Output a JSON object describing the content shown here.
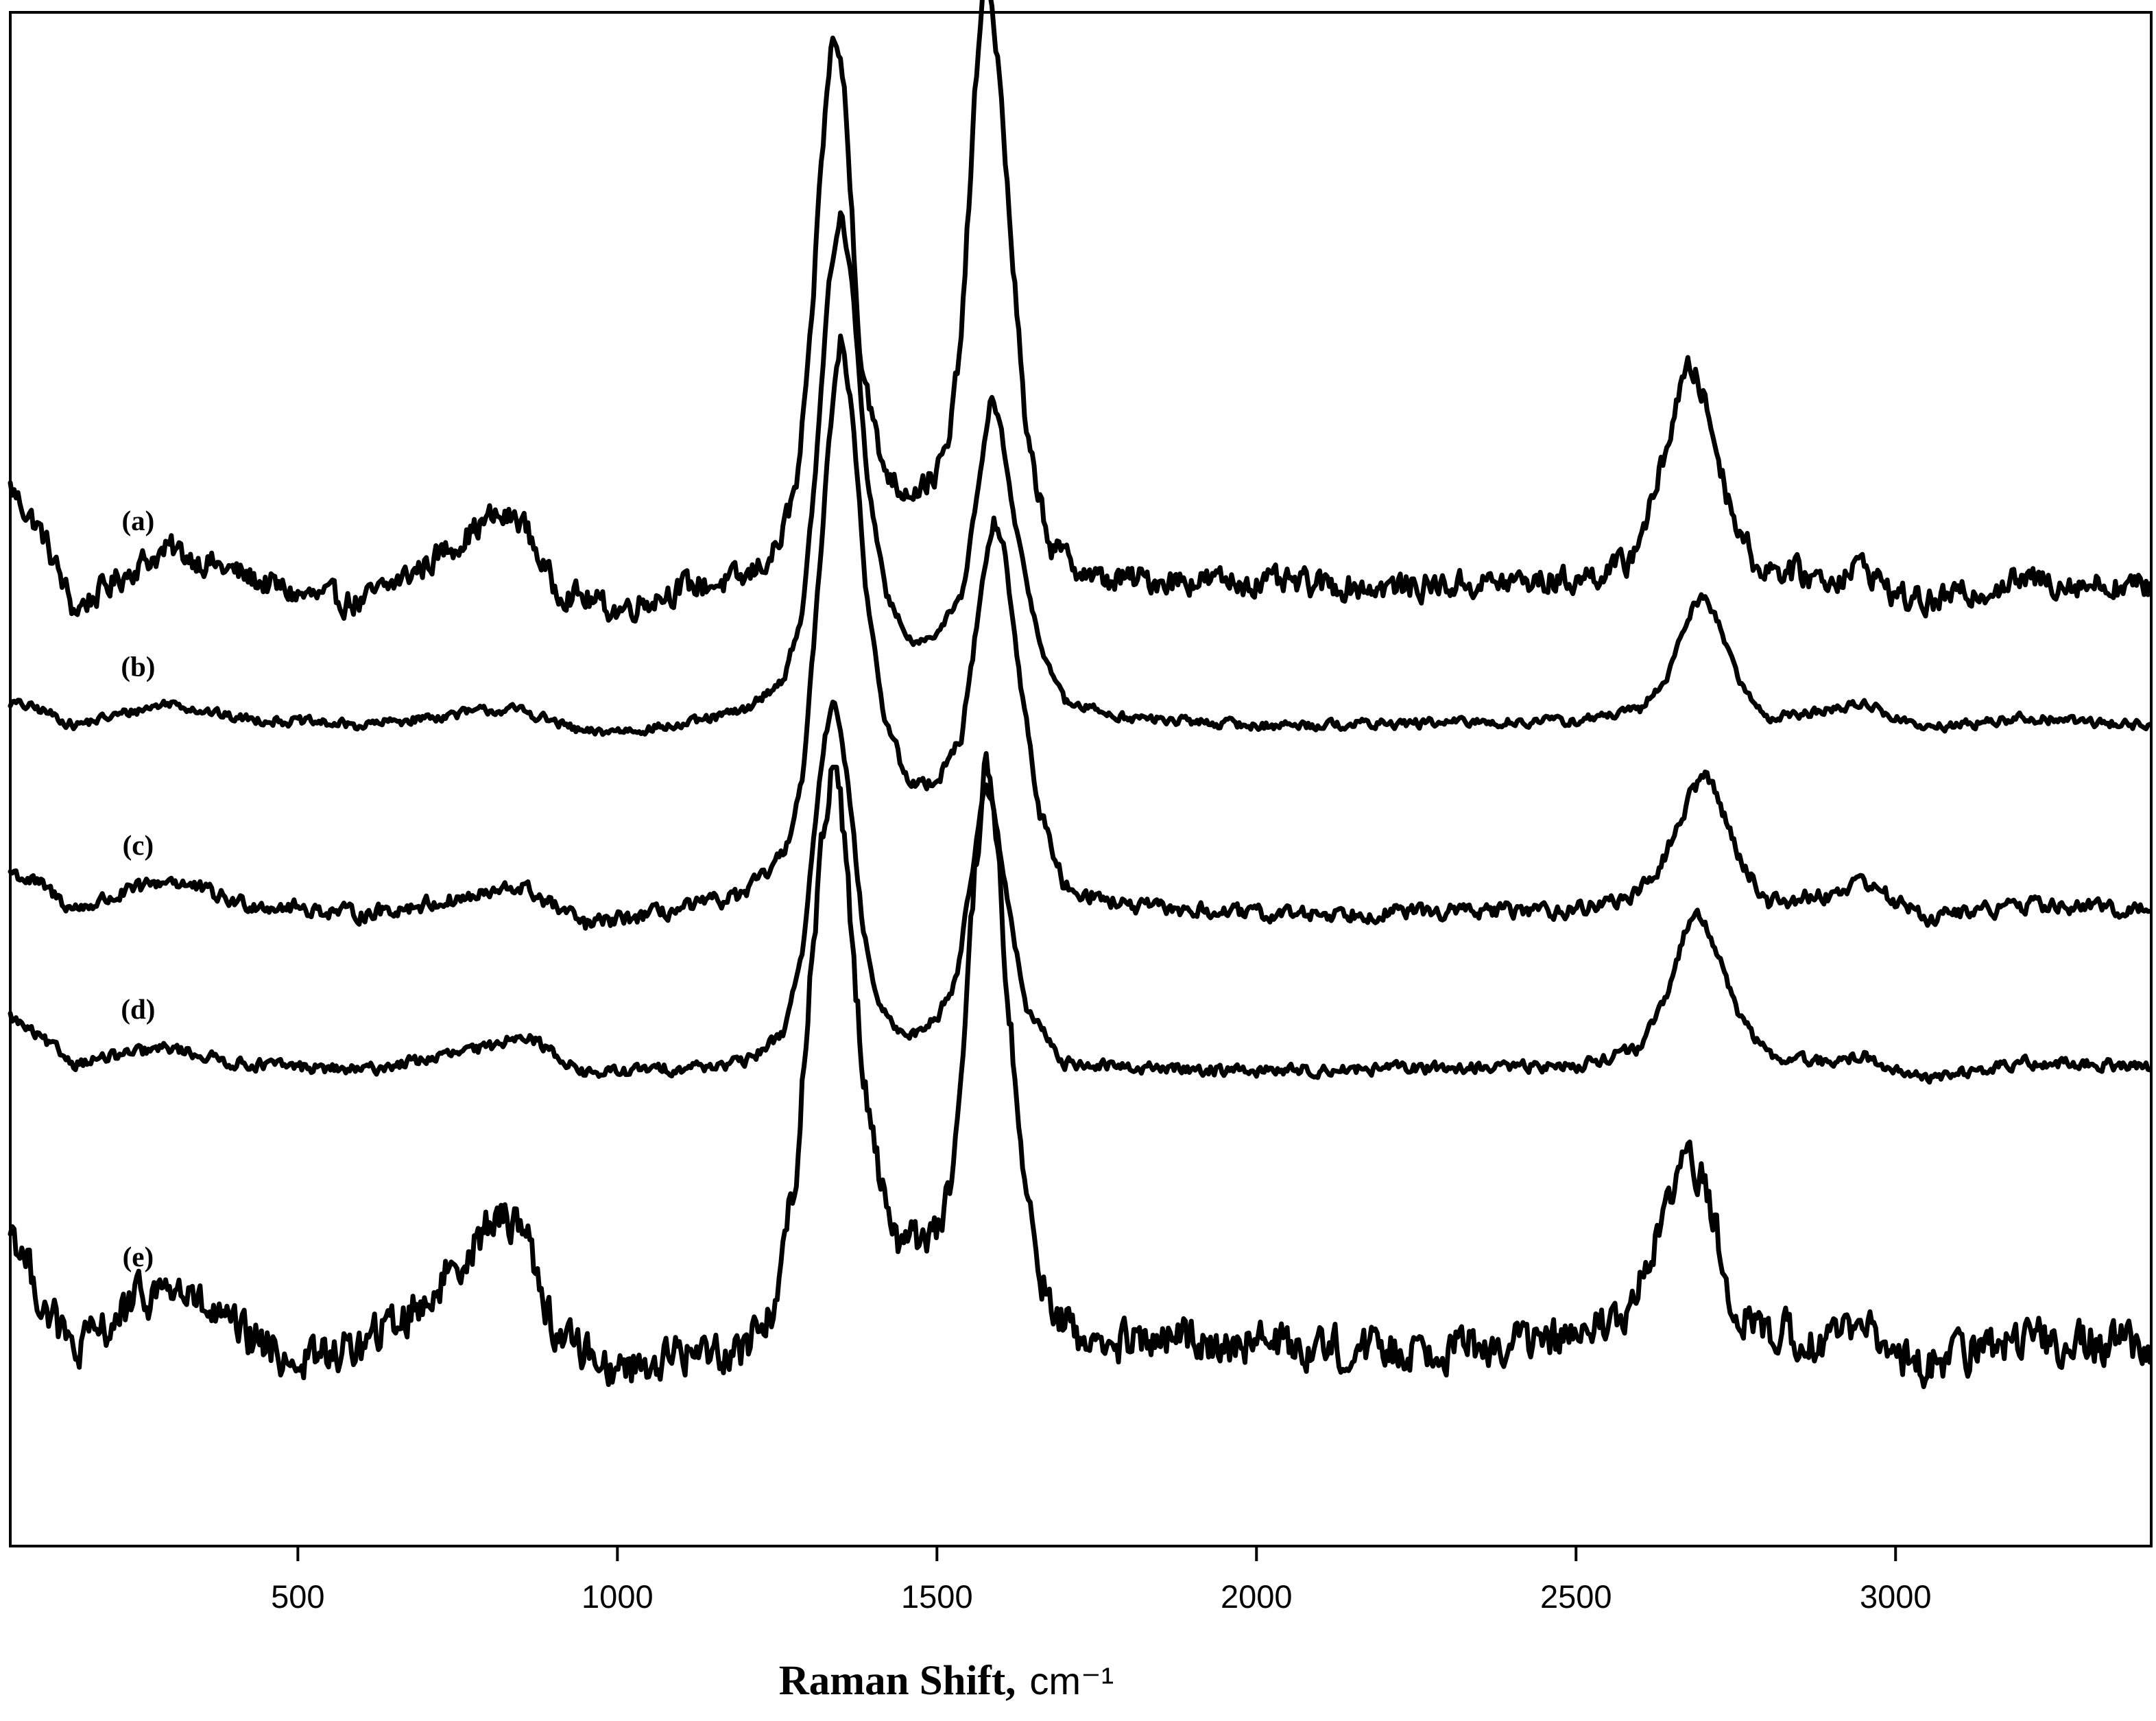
{
  "chart_data": {
    "type": "line",
    "xlabel": "Raman Shift,",
    "xlabel_unit": "cm⁻¹",
    "xlim": [
      50,
      3400
    ],
    "xticks": [
      500,
      1000,
      1500,
      2000,
      2500,
      3000
    ],
    "xtick_labels": [
      "500",
      "1000",
      "1500",
      "2000",
      "2500",
      "3000"
    ],
    "y_axis": "intensity, arbitrary units, traces vertically offset; no tick labels",
    "ylim": [
      0,
      100
    ],
    "grid": false,
    "legend": "none",
    "series": [
      {
        "label": "(a)",
        "baseline": 63,
        "noise": 1.4,
        "points": [
          [
            50,
            69
          ],
          [
            100,
            66
          ],
          [
            150,
            61
          ],
          [
            250,
            64
          ],
          [
            300,
            65
          ],
          [
            400,
            63.5
          ],
          [
            500,
            62
          ],
          [
            600,
            61.5
          ],
          [
            700,
            64
          ],
          [
            800,
            67
          ],
          [
            850,
            67
          ],
          [
            900,
            62.5
          ],
          [
            1000,
            61
          ],
          [
            1100,
            62.5
          ],
          [
            1200,
            63
          ],
          [
            1250,
            65
          ],
          [
            1280,
            69
          ],
          [
            1300,
            77
          ],
          [
            1320,
            91
          ],
          [
            1338,
            99
          ],
          [
            1355,
            95
          ],
          [
            1380,
            78
          ],
          [
            1410,
            71
          ],
          [
            1440,
            69
          ],
          [
            1470,
            69
          ],
          [
            1500,
            70
          ],
          [
            1520,
            72
          ],
          [
            1540,
            80
          ],
          [
            1560,
            95
          ],
          [
            1578,
            103
          ],
          [
            1595,
            97
          ],
          [
            1615,
            86
          ],
          [
            1640,
            72
          ],
          [
            1680,
            65
          ],
          [
            1750,
            63
          ],
          [
            1900,
            63
          ],
          [
            2200,
            62.5
          ],
          [
            2500,
            63
          ],
          [
            2580,
            64
          ],
          [
            2620,
            68
          ],
          [
            2660,
            75
          ],
          [
            2680,
            77
          ],
          [
            2700,
            75
          ],
          [
            2740,
            68
          ],
          [
            2780,
            64
          ],
          [
            2900,
            63
          ],
          [
            2950,
            64
          ],
          [
            3000,
            62
          ],
          [
            3050,
            61.5
          ],
          [
            3200,
            63
          ],
          [
            3400,
            62.5
          ]
        ]
      },
      {
        "label": "(b)",
        "baseline": 53.7,
        "noise": 0.5,
        "points": [
          [
            50,
            55
          ],
          [
            100,
            54.5
          ],
          [
            150,
            53.5
          ],
          [
            300,
            55
          ],
          [
            400,
            54
          ],
          [
            600,
            53.5
          ],
          [
            800,
            54.5
          ],
          [
            850,
            54.5
          ],
          [
            950,
            53
          ],
          [
            1100,
            53.5
          ],
          [
            1200,
            54.5
          ],
          [
            1260,
            56.5
          ],
          [
            1290,
            61
          ],
          [
            1310,
            70
          ],
          [
            1330,
            82
          ],
          [
            1350,
            87
          ],
          [
            1368,
            82
          ],
          [
            1390,
            70
          ],
          [
            1420,
            62
          ],
          [
            1460,
            59
          ],
          [
            1500,
            59.5
          ],
          [
            1540,
            62
          ],
          [
            1565,
            69
          ],
          [
            1585,
            75
          ],
          [
            1600,
            73
          ],
          [
            1620,
            67
          ],
          [
            1660,
            59
          ],
          [
            1700,
            55
          ],
          [
            1800,
            54
          ],
          [
            2000,
            53.5
          ],
          [
            2500,
            53.8
          ],
          [
            2600,
            54.5
          ],
          [
            2640,
            56.5
          ],
          [
            2680,
            61
          ],
          [
            2700,
            62
          ],
          [
            2720,
            60.5
          ],
          [
            2760,
            56
          ],
          [
            2800,
            54
          ],
          [
            2900,
            54.5
          ],
          [
            2950,
            55
          ],
          [
            3000,
            54
          ],
          [
            3050,
            53.3
          ],
          [
            3200,
            54
          ],
          [
            3400,
            53.5
          ]
        ]
      },
      {
        "label": "(c)",
        "baseline": 41.5,
        "noise": 0.8,
        "points": [
          [
            50,
            44
          ],
          [
            100,
            43
          ],
          [
            150,
            41.5
          ],
          [
            300,
            43.5
          ],
          [
            400,
            42
          ],
          [
            600,
            41.2
          ],
          [
            800,
            42.5
          ],
          [
            850,
            43
          ],
          [
            950,
            40.5
          ],
          [
            1100,
            41.5
          ],
          [
            1200,
            42.5
          ],
          [
            1260,
            45
          ],
          [
            1290,
            50
          ],
          [
            1310,
            60
          ],
          [
            1330,
            72
          ],
          [
            1350,
            79
          ],
          [
            1368,
            74
          ],
          [
            1390,
            62
          ],
          [
            1420,
            53.5
          ],
          [
            1460,
            49.5
          ],
          [
            1500,
            50
          ],
          [
            1540,
            53
          ],
          [
            1565,
            61
          ],
          [
            1588,
            67
          ],
          [
            1605,
            65
          ],
          [
            1625,
            58
          ],
          [
            1660,
            48
          ],
          [
            1700,
            43
          ],
          [
            1800,
            41.7
          ],
          [
            2000,
            41.2
          ],
          [
            2500,
            41.5
          ],
          [
            2600,
            42.5
          ],
          [
            2640,
            45
          ],
          [
            2680,
            49
          ],
          [
            2700,
            50.5
          ],
          [
            2720,
            49
          ],
          [
            2760,
            44.5
          ],
          [
            2800,
            42
          ],
          [
            2900,
            42.5
          ],
          [
            2950,
            43.5
          ],
          [
            3000,
            42
          ],
          [
            3050,
            41
          ],
          [
            3200,
            41.8
          ],
          [
            3400,
            41.5
          ]
        ]
      },
      {
        "label": "(d)",
        "baseline": 31.3,
        "noise": 0.6,
        "points": [
          [
            50,
            34.5
          ],
          [
            100,
            33
          ],
          [
            150,
            31.5
          ],
          [
            300,
            32.5
          ],
          [
            400,
            31.5
          ],
          [
            600,
            31
          ],
          [
            800,
            32.5
          ],
          [
            850,
            33.5
          ],
          [
            950,
            30.8
          ],
          [
            1100,
            31.2
          ],
          [
            1200,
            31.5
          ],
          [
            1260,
            33.5
          ],
          [
            1290,
            39
          ],
          [
            1310,
            47
          ],
          [
            1325,
            53
          ],
          [
            1340,
            55
          ],
          [
            1360,
            50
          ],
          [
            1385,
            40
          ],
          [
            1410,
            35
          ],
          [
            1440,
            33.5
          ],
          [
            1470,
            33.5
          ],
          [
            1500,
            34.5
          ],
          [
            1530,
            37
          ],
          [
            1555,
            44
          ],
          [
            1575,
            50
          ],
          [
            1590,
            48
          ],
          [
            1610,
            42
          ],
          [
            1640,
            35
          ],
          [
            1700,
            31.5
          ],
          [
            1800,
            31.2
          ],
          [
            2000,
            31
          ],
          [
            2500,
            31.3
          ],
          [
            2600,
            32.5
          ],
          [
            2640,
            35.5
          ],
          [
            2670,
            40
          ],
          [
            2690,
            41.5
          ],
          [
            2710,
            40
          ],
          [
            2750,
            35
          ],
          [
            2800,
            32
          ],
          [
            2900,
            31.5
          ],
          [
            2950,
            32
          ],
          [
            3000,
            31
          ],
          [
            3050,
            30.5
          ],
          [
            3200,
            31.5
          ],
          [
            3400,
            31.3
          ]
        ]
      },
      {
        "label": "(e)",
        "baseline": 13.2,
        "noise": 2.2,
        "points": [
          [
            50,
            21
          ],
          [
            100,
            16
          ],
          [
            150,
            12.5
          ],
          [
            250,
            16
          ],
          [
            300,
            17
          ],
          [
            400,
            14
          ],
          [
            500,
            12
          ],
          [
            600,
            13
          ],
          [
            700,
            16
          ],
          [
            800,
            21
          ],
          [
            850,
            21.5
          ],
          [
            900,
            14
          ],
          [
            1000,
            11.5
          ],
          [
            1100,
            12.5
          ],
          [
            1200,
            13
          ],
          [
            1250,
            16
          ],
          [
            1280,
            25
          ],
          [
            1300,
            36
          ],
          [
            1320,
            46
          ],
          [
            1338,
            52
          ],
          [
            1355,
            46
          ],
          [
            1380,
            33
          ],
          [
            1410,
            24
          ],
          [
            1440,
            20
          ],
          [
            1470,
            20
          ],
          [
            1500,
            21
          ],
          [
            1520,
            23
          ],
          [
            1540,
            30
          ],
          [
            1560,
            44
          ],
          [
            1577,
            51
          ],
          [
            1592,
            47
          ],
          [
            1610,
            36
          ],
          [
            1640,
            22
          ],
          [
            1680,
            15
          ],
          [
            1750,
            13
          ],
          [
            1900,
            13.5
          ],
          [
            2200,
            12.8
          ],
          [
            2500,
            13.5
          ],
          [
            2580,
            15
          ],
          [
            2620,
            19
          ],
          [
            2660,
            24
          ],
          [
            2680,
            25.5
          ],
          [
            2700,
            23.5
          ],
          [
            2740,
            17
          ],
          [
            2780,
            14
          ],
          [
            2900,
            13.5
          ],
          [
            2950,
            14
          ],
          [
            3000,
            12.5
          ],
          [
            3050,
            12
          ],
          [
            3200,
            13.5
          ],
          [
            3400,
            13
          ]
        ]
      }
    ]
  }
}
